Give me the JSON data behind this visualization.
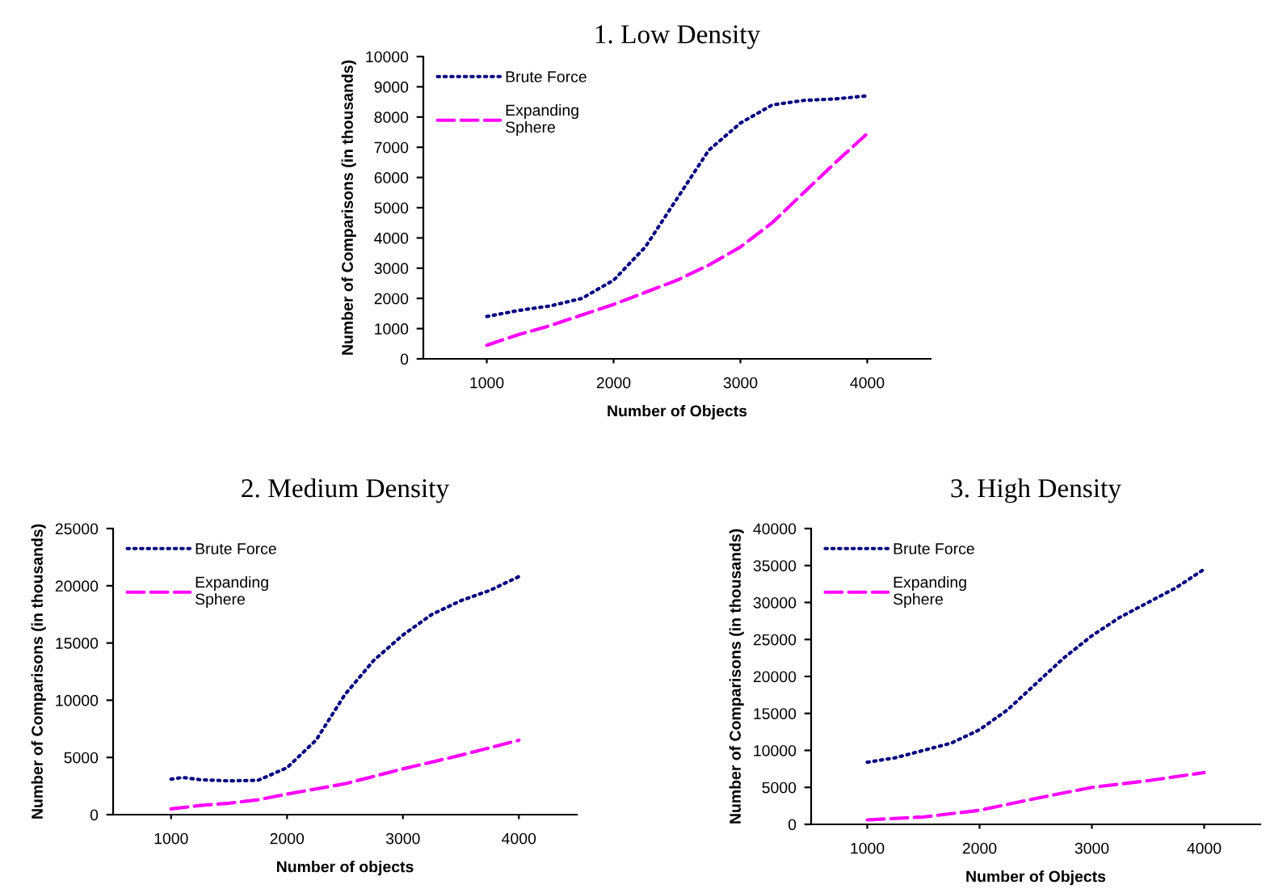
{
  "chart_data": [
    {
      "type": "line",
      "title": "1. Low Density",
      "xlabel": "Number of Objects",
      "ylabel": "Number of Comparisons (in thousands)",
      "xlim": [
        500,
        4500
      ],
      "xticks": [
        1000,
        2000,
        3000,
        4000
      ],
      "ylim": [
        0,
        10000
      ],
      "yticks": [
        0,
        1000,
        2000,
        3000,
        4000,
        5000,
        6000,
        7000,
        8000,
        9000,
        10000
      ],
      "grid": false,
      "legend": "top left",
      "marker": "none",
      "series": [
        {
          "name": "Brute Force",
          "color": "#000080",
          "line_style": "dotted",
          "x": [
            1000,
            1250,
            1500,
            1750,
            2000,
            2250,
            2500,
            2750,
            3000,
            3250,
            3500,
            3750,
            4000
          ],
          "values": [
            1400,
            1600,
            1750,
            2000,
            2600,
            3700,
            5300,
            6900,
            7800,
            8400,
            8550,
            8600,
            8700
          ]
        },
        {
          "name": "Expanding Sphere",
          "color": "#ff00ff",
          "line_style": "dashed",
          "x": [
            1000,
            1250,
            1500,
            1750,
            2000,
            2250,
            2500,
            2750,
            3000,
            3250,
            3500,
            3750,
            4000
          ],
          "values": [
            450,
            800,
            1100,
            1450,
            1800,
            2200,
            2600,
            3100,
            3700,
            4500,
            5500,
            6500,
            7450
          ]
        }
      ]
    },
    {
      "type": "line",
      "title": "2. Medium Density",
      "xlabel": "Number of objects",
      "ylabel": "Number of Comparisons (in thousands)",
      "xlim": [
        500,
        4500
      ],
      "xticks": [
        1000,
        2000,
        3000,
        4000
      ],
      "ylim": [
        0,
        25000
      ],
      "yticks": [
        0,
        5000,
        10000,
        15000,
        20000,
        25000
      ],
      "grid": false,
      "legend": "top left",
      "marker": "none",
      "series": [
        {
          "name": "Brute Force",
          "color": "#000080",
          "line_style": "dotted",
          "x": [
            1000,
            1100,
            1250,
            1500,
            1750,
            2000,
            2250,
            2500,
            2750,
            3000,
            3250,
            3500,
            3750,
            4000
          ],
          "values": [
            3100,
            3250,
            3050,
            2950,
            3000,
            4100,
            6500,
            10500,
            13500,
            15700,
            17500,
            18700,
            19600,
            20800
          ]
        },
        {
          "name": "Expanding Sphere",
          "color": "#ff00ff",
          "line_style": "dashed",
          "x": [
            1000,
            1250,
            1500,
            1750,
            2000,
            2500,
            3000,
            3500,
            4000
          ],
          "values": [
            500,
            800,
            1000,
            1300,
            1800,
            2700,
            4000,
            5200,
            6500
          ]
        }
      ]
    },
    {
      "type": "line",
      "title": "3. High Density",
      "xlabel": "Number of Objects",
      "ylabel": "Number of Comparisons (in thousands)",
      "xlim": [
        500,
        4500
      ],
      "xticks": [
        1000,
        2000,
        3000,
        4000
      ],
      "ylim": [
        0,
        40000
      ],
      "yticks": [
        0,
        5000,
        10000,
        15000,
        20000,
        25000,
        30000,
        35000,
        40000
      ],
      "grid": false,
      "legend": "top left",
      "marker": "none",
      "series": [
        {
          "name": "Brute Force",
          "color": "#000080",
          "line_style": "dotted",
          "x": [
            1000,
            1250,
            1500,
            1750,
            2000,
            2250,
            2500,
            2750,
            3000,
            3250,
            3500,
            3750,
            4000
          ],
          "values": [
            8400,
            9000,
            10000,
            11000,
            12800,
            15500,
            19000,
            22500,
            25500,
            28000,
            30000,
            32000,
            34500
          ]
        },
        {
          "name": "Expanding Sphere",
          "color": "#ff00ff",
          "line_style": "dashed",
          "x": [
            1000,
            1500,
            2000,
            2500,
            3000,
            3500,
            4000
          ],
          "values": [
            600,
            1000,
            1900,
            3500,
            5000,
            5900,
            7000
          ]
        }
      ]
    }
  ]
}
